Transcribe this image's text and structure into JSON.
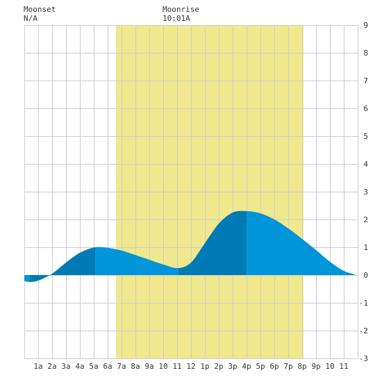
{
  "header": {
    "moonset_label": "Moonset",
    "moonset_value": "N/A",
    "moonrise_label": "Moonrise",
    "moonrise_value": "10:01A"
  },
  "colors": {
    "background": "#ffffff",
    "grid": "#cccccc",
    "daylight": "#f0e88c",
    "tide_light": "#0095d8",
    "tide_dark": "#007ab4",
    "text": "#333333"
  },
  "chart_data": {
    "type": "area",
    "title": "",
    "xlabel": "",
    "ylabel": "",
    "xlim": [
      0,
      24
    ],
    "ylim": [
      -3,
      9
    ],
    "x_ticks": [
      {
        "x": 1,
        "label": "1a"
      },
      {
        "x": 2,
        "label": "2a"
      },
      {
        "x": 3,
        "label": "3a"
      },
      {
        "x": 4,
        "label": "4a"
      },
      {
        "x": 5,
        "label": "5a"
      },
      {
        "x": 6,
        "label": "6a"
      },
      {
        "x": 7,
        "label": "7a"
      },
      {
        "x": 8,
        "label": "8a"
      },
      {
        "x": 9,
        "label": "9a"
      },
      {
        "x": 10,
        "label": "10"
      },
      {
        "x": 11,
        "label": "11"
      },
      {
        "x": 12,
        "label": "12"
      },
      {
        "x": 13,
        "label": "1p"
      },
      {
        "x": 14,
        "label": "2p"
      },
      {
        "x": 15,
        "label": "3p"
      },
      {
        "x": 16,
        "label": "4p"
      },
      {
        "x": 17,
        "label": "5p"
      },
      {
        "x": 18,
        "label": "6p"
      },
      {
        "x": 19,
        "label": "7p"
      },
      {
        "x": 20,
        "label": "8p"
      },
      {
        "x": 21,
        "label": "9p"
      },
      {
        "x": 22,
        "label": "10"
      },
      {
        "x": 23,
        "label": "11"
      }
    ],
    "y_ticks": [
      {
        "y": 9,
        "label": "9"
      },
      {
        "y": 8,
        "label": "8"
      },
      {
        "y": 7,
        "label": "7"
      },
      {
        "y": 6,
        "label": "6"
      },
      {
        "y": 5,
        "label": "5"
      },
      {
        "y": 4,
        "label": "4"
      },
      {
        "y": 3,
        "label": "3"
      },
      {
        "y": 2,
        "label": "2"
      },
      {
        "y": 1,
        "label": "1"
      },
      {
        "y": 0,
        "label": "0"
      },
      {
        "y": -1,
        "label": "-1"
      },
      {
        "y": -2,
        "label": "-2"
      },
      {
        "y": -3,
        "label": "-3"
      }
    ],
    "daylight_band": [
      6.6,
      20.1
    ],
    "extremes": [
      {
        "x": 0.4,
        "y": -0.25
      },
      {
        "x": 5.1,
        "y": 1.0
      },
      {
        "x": 11.1,
        "y": 0.25
      },
      {
        "x": 16.0,
        "y": 2.3
      }
    ],
    "series": [
      {
        "x": [
          0.0,
          0.4,
          1.0,
          2.0,
          3.0,
          4.0,
          5.1,
          6.0,
          7.0,
          8.0,
          9.0,
          10.0,
          11.1,
          12.0,
          13.0,
          14.0,
          15.0,
          16.0,
          17.0,
          18.0,
          19.0,
          20.0,
          21.0,
          22.0,
          23.0,
          23.8
        ],
        "y": [
          -0.22,
          -0.25,
          -0.2,
          0.05,
          0.45,
          0.8,
          1.0,
          0.98,
          0.88,
          0.72,
          0.55,
          0.38,
          0.25,
          0.45,
          1.15,
          1.85,
          2.25,
          2.3,
          2.22,
          2.0,
          1.68,
          1.3,
          0.9,
          0.48,
          0.15,
          0.02
        ]
      }
    ]
  }
}
